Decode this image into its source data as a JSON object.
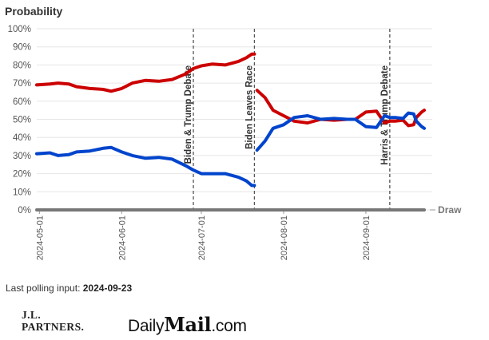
{
  "chart_data": {
    "type": "line",
    "ylabel": "Probability",
    "ylim": [
      0,
      100
    ],
    "yticks": [
      "0%",
      "10%",
      "20%",
      "30%",
      "40%",
      "50%",
      "60%",
      "70%",
      "80%",
      "90%",
      "100%"
    ],
    "xlim": [
      "2024-04-30",
      "2024-09-26"
    ],
    "xticks": [
      "2024-05-01",
      "2024-06-01",
      "2024-07-01",
      "2024-08-01",
      "2024-09-01"
    ],
    "grid": true,
    "series": [
      {
        "name": "",
        "color": "#cc0000",
        "segment": "before Biden leaves race",
        "x": [
          "2024-04-30",
          "2024-05-05",
          "2024-05-08",
          "2024-05-12",
          "2024-05-15",
          "2024-05-20",
          "2024-05-25",
          "2024-05-28",
          "2024-06-01",
          "2024-06-05",
          "2024-06-10",
          "2024-06-15",
          "2024-06-20",
          "2024-06-25",
          "2024-06-28",
          "2024-07-01",
          "2024-07-05",
          "2024-07-10",
          "2024-07-15",
          "2024-07-18",
          "2024-07-20",
          "2024-07-21"
        ],
        "y": [
          69,
          69.5,
          70,
          69.5,
          68,
          67,
          66.5,
          65.5,
          67,
          70,
          71.5,
          71,
          72,
          75,
          78,
          79.5,
          80.5,
          80,
          82,
          84,
          86,
          86
        ]
      },
      {
        "name": "",
        "color": "#0044cc",
        "segment": "before Biden leaves race",
        "x": [
          "2024-04-30",
          "2024-05-05",
          "2024-05-08",
          "2024-05-12",
          "2024-05-15",
          "2024-05-20",
          "2024-05-25",
          "2024-05-28",
          "2024-06-01",
          "2024-06-05",
          "2024-06-10",
          "2024-06-15",
          "2024-06-20",
          "2024-06-25",
          "2024-06-28",
          "2024-07-01",
          "2024-07-05",
          "2024-07-10",
          "2024-07-15",
          "2024-07-18",
          "2024-07-20",
          "2024-07-21"
        ],
        "y": [
          31,
          31.5,
          30,
          30.5,
          32,
          32.5,
          34,
          34.5,
          32,
          30,
          28.5,
          29,
          28,
          24.5,
          22,
          20,
          20,
          20,
          18,
          16,
          13.5,
          13.5
        ]
      },
      {
        "name": "",
        "color": "#cc0000",
        "segment": "after Biden leaves race",
        "x": [
          "2024-07-22",
          "2024-07-25",
          "2024-07-28",
          "2024-08-01",
          "2024-08-05",
          "2024-08-10",
          "2024-08-15",
          "2024-08-20",
          "2024-08-25",
          "2024-08-28",
          "2024-09-01",
          "2024-09-05",
          "2024-09-08",
          "2024-09-10",
          "2024-09-12",
          "2024-09-15",
          "2024-09-17",
          "2024-09-19",
          "2024-09-20",
          "2024-09-22",
          "2024-09-23"
        ],
        "y": [
          66,
          62,
          55,
          52,
          49,
          48,
          50,
          49.5,
          50,
          50,
          54,
          54.5,
          48,
          49,
          49,
          49.5,
          46.5,
          47,
          51,
          54,
          55
        ]
      },
      {
        "name": "",
        "color": "#0044cc",
        "segment": "after Biden leaves race",
        "x": [
          "2024-07-22",
          "2024-07-25",
          "2024-07-28",
          "2024-08-01",
          "2024-08-05",
          "2024-08-10",
          "2024-08-15",
          "2024-08-20",
          "2024-08-25",
          "2024-08-28",
          "2024-09-01",
          "2024-09-05",
          "2024-09-08",
          "2024-09-10",
          "2024-09-12",
          "2024-09-15",
          "2024-09-17",
          "2024-09-19",
          "2024-09-20",
          "2024-09-22",
          "2024-09-23"
        ],
        "y": [
          33,
          38,
          45,
          47,
          51,
          52,
          50,
          50.5,
          50,
          50,
          46,
          45.5,
          52,
          51,
          51,
          50.5,
          53.5,
          53,
          49,
          46,
          45
        ]
      },
      {
        "name": "Draw",
        "color": "#777777",
        "segment": "full period",
        "x": [
          "2024-04-30",
          "2024-09-23"
        ],
        "y": [
          0,
          0
        ]
      }
    ],
    "events": [
      {
        "date": "2024-06-28",
        "label": "Biden & Trump Debate"
      },
      {
        "date": "2024-07-21",
        "label": "Biden Leaves Race"
      },
      {
        "date": "2024-09-10",
        "label": "Harris & Trump Debate"
      }
    ]
  },
  "footer": {
    "last_input_label": "Last polling input:",
    "last_input_date": "2024-09-23"
  },
  "logos": {
    "jl_line1": "J.L.",
    "jl_line2": "PARTNERS.",
    "dm_prefix": "Daily",
    "dm_mail": "Mail",
    "dm_suffix": ".com"
  }
}
